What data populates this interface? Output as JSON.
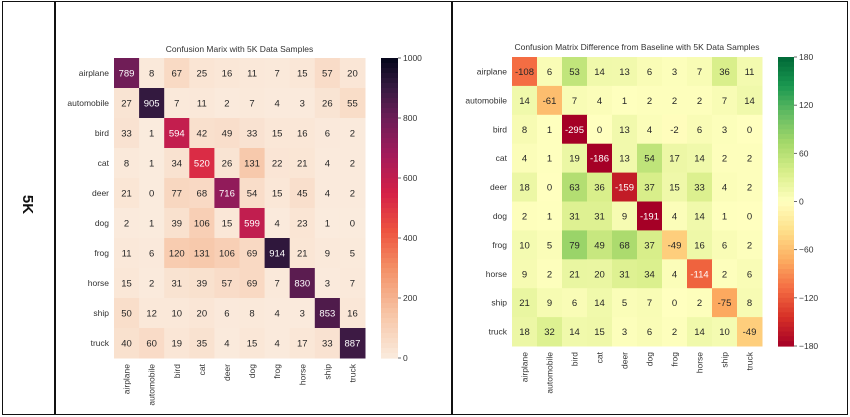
{
  "row_label": "5K",
  "chart_data": [
    {
      "type": "heatmap",
      "title": "Confusion Marix with 5K Data Samples",
      "colormap": "rocket_r",
      "categories": [
        "airplane",
        "automobile",
        "bird",
        "cat",
        "deer",
        "dog",
        "frog",
        "horse",
        "ship",
        "truck"
      ],
      "vmin": 0,
      "vmax": 1000,
      "colorbar_ticks": [
        0,
        200,
        400,
        600,
        800,
        1000
      ],
      "values": [
        [
          789,
          8,
          67,
          25,
          16,
          11,
          7,
          15,
          57,
          20
        ],
        [
          27,
          905,
          7,
          11,
          2,
          7,
          4,
          3,
          26,
          55
        ],
        [
          33,
          1,
          594,
          42,
          49,
          33,
          15,
          16,
          6,
          2
        ],
        [
          8,
          1,
          34,
          520,
          26,
          131,
          22,
          21,
          4,
          2
        ],
        [
          21,
          0,
          77,
          68,
          716,
          54,
          15,
          45,
          4,
          2
        ],
        [
          2,
          1,
          39,
          106,
          15,
          599,
          4,
          23,
          1,
          0
        ],
        [
          11,
          6,
          120,
          131,
          106,
          69,
          914,
          21,
          9,
          5
        ],
        [
          15,
          2,
          31,
          39,
          57,
          69,
          7,
          830,
          3,
          7
        ],
        [
          50,
          12,
          10,
          20,
          6,
          8,
          4,
          3,
          853,
          16
        ],
        [
          40,
          60,
          19,
          35,
          4,
          15,
          4,
          17,
          33,
          887
        ]
      ]
    },
    {
      "type": "heatmap",
      "title": "Confusion Matrix Difference from Baseline with 5K Data Samples",
      "colormap": "RdYlGn",
      "categories": [
        "airplane",
        "automobile",
        "bird",
        "cat",
        "deer",
        "dog",
        "frog",
        "horse",
        "ship",
        "truck"
      ],
      "vmin": -180,
      "vmax": 180,
      "colorbar_ticks": [
        -180,
        -120,
        -60,
        0,
        60,
        120,
        180
      ],
      "values": [
        [
          -108,
          6,
          53,
          14,
          13,
          6,
          3,
          7,
          36,
          11
        ],
        [
          14,
          -61,
          7,
          4,
          1,
          2,
          2,
          2,
          7,
          14
        ],
        [
          8,
          1,
          -295,
          0,
          13,
          4,
          -2,
          6,
          3,
          0
        ],
        [
          4,
          1,
          19,
          -186,
          13,
          54,
          17,
          14,
          2,
          2
        ],
        [
          18,
          0,
          63,
          36,
          -159,
          37,
          15,
          33,
          4,
          2
        ],
        [
          2,
          1,
          31,
          31,
          9,
          -191,
          4,
          14,
          1,
          0
        ],
        [
          10,
          5,
          79,
          49,
          68,
          37,
          -49,
          16,
          6,
          2
        ],
        [
          9,
          2,
          21,
          20,
          31,
          34,
          4,
          -114,
          2,
          6
        ],
        [
          21,
          9,
          6,
          14,
          5,
          7,
          0,
          2,
          -75,
          8
        ],
        [
          18,
          32,
          14,
          15,
          3,
          6,
          2,
          14,
          10,
          -49
        ]
      ]
    }
  ]
}
